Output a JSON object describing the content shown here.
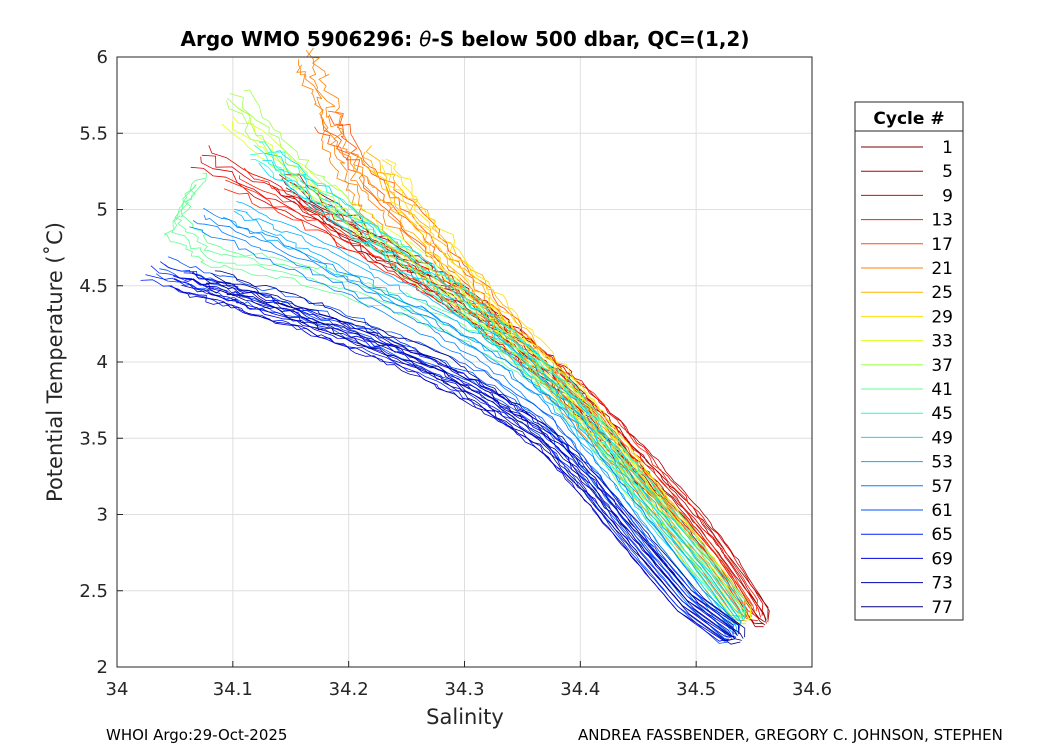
{
  "chart_data": {
    "type": "line",
    "title_prefix": "Argo WMO 5906296: ",
    "title_symbol": "θ",
    "title_suffix": "-S below 500 dbar,  QC=(1,2)",
    "xlabel": "Salinity",
    "ylabel": "Potential Temperature (˚C)",
    "xlim": [
      34,
      34.6
    ],
    "ylim": [
      2,
      6
    ],
    "xticks": [
      34,
      34.1,
      34.2,
      34.3,
      34.4,
      34.5,
      34.6
    ],
    "xtick_labels": [
      "34",
      "34.1",
      "34.2",
      "34.3",
      "34.4",
      "34.5",
      "34.6"
    ],
    "yticks": [
      2,
      2.5,
      3,
      3.5,
      4,
      4.5,
      5,
      5.5,
      6
    ],
    "ytick_labels": [
      "2",
      "2.5",
      "3",
      "3.5",
      "4",
      "4.5",
      "5",
      "5.5",
      "6"
    ],
    "grid": true,
    "legend_position": "outside-right",
    "legend_title": "Cycle #",
    "series": [
      {
        "name": "1",
        "color": "#800000",
        "points": [
          [
            34.15,
            5.15
          ],
          [
            34.22,
            4.78
          ],
          [
            34.28,
            4.5
          ],
          [
            34.33,
            4.22
          ],
          [
            34.37,
            3.95
          ],
          [
            34.41,
            3.65
          ],
          [
            34.45,
            3.3
          ],
          [
            34.49,
            3.0
          ],
          [
            34.52,
            2.7
          ],
          [
            34.56,
            2.3
          ]
        ]
      },
      {
        "name": "5",
        "color": "#b00000",
        "points": [
          [
            34.14,
            5.2
          ],
          [
            34.21,
            4.82
          ],
          [
            34.28,
            4.5
          ],
          [
            34.33,
            4.2
          ],
          [
            34.38,
            3.92
          ],
          [
            34.42,
            3.62
          ],
          [
            34.46,
            3.3
          ],
          [
            34.5,
            2.95
          ],
          [
            34.53,
            2.65
          ],
          [
            34.56,
            2.28
          ]
        ]
      },
      {
        "name": "9",
        "color": "#e00000",
        "points": [
          [
            34.07,
            5.35
          ],
          [
            34.16,
            5.0
          ],
          [
            34.24,
            4.66
          ],
          [
            34.3,
            4.38
          ],
          [
            34.35,
            4.1
          ],
          [
            34.4,
            3.78
          ],
          [
            34.44,
            3.45
          ],
          [
            34.48,
            3.1
          ],
          [
            34.52,
            2.75
          ],
          [
            34.555,
            2.32
          ]
        ]
      },
      {
        "name": "13",
        "color": "#ff2000",
        "points": [
          [
            34.1,
            5.2
          ],
          [
            34.18,
            4.9
          ],
          [
            34.25,
            4.6
          ],
          [
            34.31,
            4.32
          ],
          [
            34.36,
            4.02
          ],
          [
            34.41,
            3.7
          ],
          [
            34.45,
            3.35
          ],
          [
            34.49,
            3.0
          ],
          [
            34.52,
            2.7
          ],
          [
            34.55,
            2.35
          ]
        ]
      },
      {
        "name": "17",
        "color": "#ff5000",
        "points": [
          [
            34.18,
            5.6
          ],
          [
            34.22,
            5.2
          ],
          [
            34.27,
            4.8
          ],
          [
            34.31,
            4.45
          ],
          [
            34.35,
            4.12
          ],
          [
            34.39,
            3.78
          ],
          [
            34.43,
            3.42
          ],
          [
            34.47,
            3.05
          ],
          [
            34.51,
            2.7
          ],
          [
            34.545,
            2.32
          ]
        ]
      },
      {
        "name": "21",
        "color": "#ff8000",
        "points": [
          [
            34.16,
            6.0
          ],
          [
            34.18,
            5.7
          ],
          [
            34.19,
            5.4
          ],
          [
            34.21,
            5.1
          ],
          [
            34.25,
            4.75
          ],
          [
            34.3,
            4.4
          ],
          [
            34.35,
            4.05
          ],
          [
            34.4,
            3.65
          ],
          [
            34.45,
            3.2
          ],
          [
            34.5,
            2.75
          ],
          [
            34.54,
            2.35
          ]
        ]
      },
      {
        "name": "25",
        "color": "#ffb000",
        "points": [
          [
            34.21,
            5.35
          ],
          [
            34.25,
            5.0
          ],
          [
            34.29,
            4.65
          ],
          [
            34.33,
            4.3
          ],
          [
            34.37,
            3.95
          ],
          [
            34.41,
            3.6
          ],
          [
            34.45,
            3.2
          ],
          [
            34.49,
            2.8
          ],
          [
            34.54,
            2.3
          ]
        ]
      },
      {
        "name": "29",
        "color": "#ffe000",
        "points": [
          [
            34.23,
            5.3
          ],
          [
            34.26,
            4.95
          ],
          [
            34.3,
            4.6
          ],
          [
            34.34,
            4.25
          ],
          [
            34.38,
            3.92
          ],
          [
            34.42,
            3.55
          ],
          [
            34.46,
            3.15
          ],
          [
            34.5,
            2.75
          ],
          [
            34.545,
            2.3
          ]
        ]
      },
      {
        "name": "33",
        "color": "#e0ff20",
        "points": [
          [
            34.1,
            5.6
          ],
          [
            34.16,
            5.2
          ],
          [
            34.23,
            4.82
          ],
          [
            34.29,
            4.48
          ],
          [
            34.34,
            4.15
          ],
          [
            34.39,
            3.82
          ],
          [
            34.43,
            3.45
          ],
          [
            34.47,
            3.05
          ],
          [
            34.51,
            2.65
          ],
          [
            34.545,
            2.3
          ]
        ]
      },
      {
        "name": "37",
        "color": "#a0ff50",
        "points": [
          [
            34.1,
            5.75
          ],
          [
            34.15,
            5.3
          ],
          [
            34.2,
            4.95
          ],
          [
            34.26,
            4.6
          ],
          [
            34.32,
            4.25
          ],
          [
            34.37,
            3.9
          ],
          [
            34.41,
            3.55
          ],
          [
            34.45,
            3.15
          ],
          [
            34.5,
            2.7
          ],
          [
            34.54,
            2.3
          ]
        ]
      },
      {
        "name": "41",
        "color": "#60ff90",
        "points": [
          [
            34.07,
            5.2
          ],
          [
            34.05,
            4.9
          ],
          [
            34.08,
            4.7
          ],
          [
            34.15,
            4.6
          ],
          [
            34.22,
            4.45
          ],
          [
            34.29,
            4.25
          ],
          [
            34.35,
            4.0
          ],
          [
            34.4,
            3.7
          ],
          [
            34.44,
            3.3
          ],
          [
            34.49,
            2.85
          ],
          [
            34.54,
            2.32
          ]
        ]
      },
      {
        "name": "45",
        "color": "#20ffd0",
        "points": [
          [
            34.12,
            5.4
          ],
          [
            34.17,
            5.1
          ],
          [
            34.23,
            4.78
          ],
          [
            34.29,
            4.45
          ],
          [
            34.34,
            4.12
          ],
          [
            34.39,
            3.78
          ],
          [
            34.43,
            3.4
          ],
          [
            34.47,
            3.0
          ],
          [
            34.51,
            2.62
          ],
          [
            34.54,
            2.35
          ]
        ]
      },
      {
        "name": "49",
        "color": "#00e0ff",
        "points": [
          [
            34.13,
            5.35
          ],
          [
            34.18,
            5.05
          ],
          [
            34.24,
            4.72
          ],
          [
            34.3,
            4.38
          ],
          [
            34.35,
            4.05
          ],
          [
            34.39,
            3.72
          ],
          [
            34.43,
            3.35
          ],
          [
            34.47,
            2.95
          ],
          [
            34.51,
            2.6
          ],
          [
            34.54,
            2.3
          ]
        ]
      },
      {
        "name": "53",
        "color": "#00b0ff",
        "points": [
          [
            34.1,
            5.0
          ],
          [
            34.16,
            4.78
          ],
          [
            34.22,
            4.55
          ],
          [
            34.28,
            4.3
          ],
          [
            34.34,
            4.02
          ],
          [
            34.39,
            3.7
          ],
          [
            34.43,
            3.3
          ],
          [
            34.47,
            2.9
          ],
          [
            34.51,
            2.5
          ],
          [
            34.535,
            2.22
          ]
        ]
      },
      {
        "name": "57",
        "color": "#0080ff",
        "points": [
          [
            34.07,
            4.95
          ],
          [
            34.13,
            4.75
          ],
          [
            34.2,
            4.5
          ],
          [
            34.27,
            4.25
          ],
          [
            34.33,
            3.95
          ],
          [
            34.38,
            3.62
          ],
          [
            34.42,
            3.25
          ],
          [
            34.46,
            2.85
          ],
          [
            34.5,
            2.45
          ],
          [
            34.535,
            2.2
          ]
        ]
      },
      {
        "name": "61",
        "color": "#0050ff",
        "points": [
          [
            34.04,
            4.62
          ],
          [
            34.1,
            4.48
          ],
          [
            34.17,
            4.32
          ],
          [
            34.24,
            4.12
          ],
          [
            34.31,
            3.88
          ],
          [
            34.37,
            3.58
          ],
          [
            34.41,
            3.2
          ],
          [
            34.45,
            2.82
          ],
          [
            34.49,
            2.45
          ],
          [
            34.53,
            2.18
          ]
        ]
      },
      {
        "name": "65",
        "color": "#0020ff",
        "points": [
          [
            34.03,
            4.6
          ],
          [
            34.09,
            4.45
          ],
          [
            34.16,
            4.28
          ],
          [
            34.23,
            4.1
          ],
          [
            34.3,
            3.85
          ],
          [
            34.36,
            3.55
          ],
          [
            34.41,
            3.2
          ],
          [
            34.45,
            2.8
          ],
          [
            34.49,
            2.45
          ],
          [
            34.535,
            2.2
          ]
        ]
      },
      {
        "name": "69",
        "color": "#0000e0",
        "points": [
          [
            34.05,
            4.55
          ],
          [
            34.11,
            4.4
          ],
          [
            34.18,
            4.22
          ],
          [
            34.25,
            4.02
          ],
          [
            34.31,
            3.8
          ],
          [
            34.37,
            3.5
          ],
          [
            34.41,
            3.15
          ],
          [
            34.45,
            2.78
          ],
          [
            34.49,
            2.42
          ],
          [
            34.53,
            2.2
          ]
        ]
      },
      {
        "name": "73",
        "color": "#0000b0",
        "points": [
          [
            34.06,
            4.52
          ],
          [
            34.12,
            4.38
          ],
          [
            34.19,
            4.2
          ],
          [
            34.26,
            3.98
          ],
          [
            34.32,
            3.75
          ],
          [
            34.37,
            3.48
          ],
          [
            34.41,
            3.15
          ],
          [
            34.45,
            2.78
          ],
          [
            34.49,
            2.42
          ],
          [
            34.535,
            2.2
          ]
        ]
      },
      {
        "name": "77",
        "color": "#000080",
        "points": [
          [
            34.08,
            4.55
          ],
          [
            34.14,
            4.4
          ],
          [
            34.21,
            4.2
          ],
          [
            34.28,
            3.98
          ],
          [
            34.33,
            3.72
          ],
          [
            34.38,
            3.45
          ],
          [
            34.42,
            3.1
          ],
          [
            34.46,
            2.75
          ],
          [
            34.5,
            2.4
          ],
          [
            34.54,
            2.18
          ]
        ]
      }
    ]
  },
  "footer": {
    "left": "WHOI Argo:29-Oct-2025",
    "right": "ANDREA FASSBENDER, GREGORY C. JOHNSON, STEPHEN"
  }
}
